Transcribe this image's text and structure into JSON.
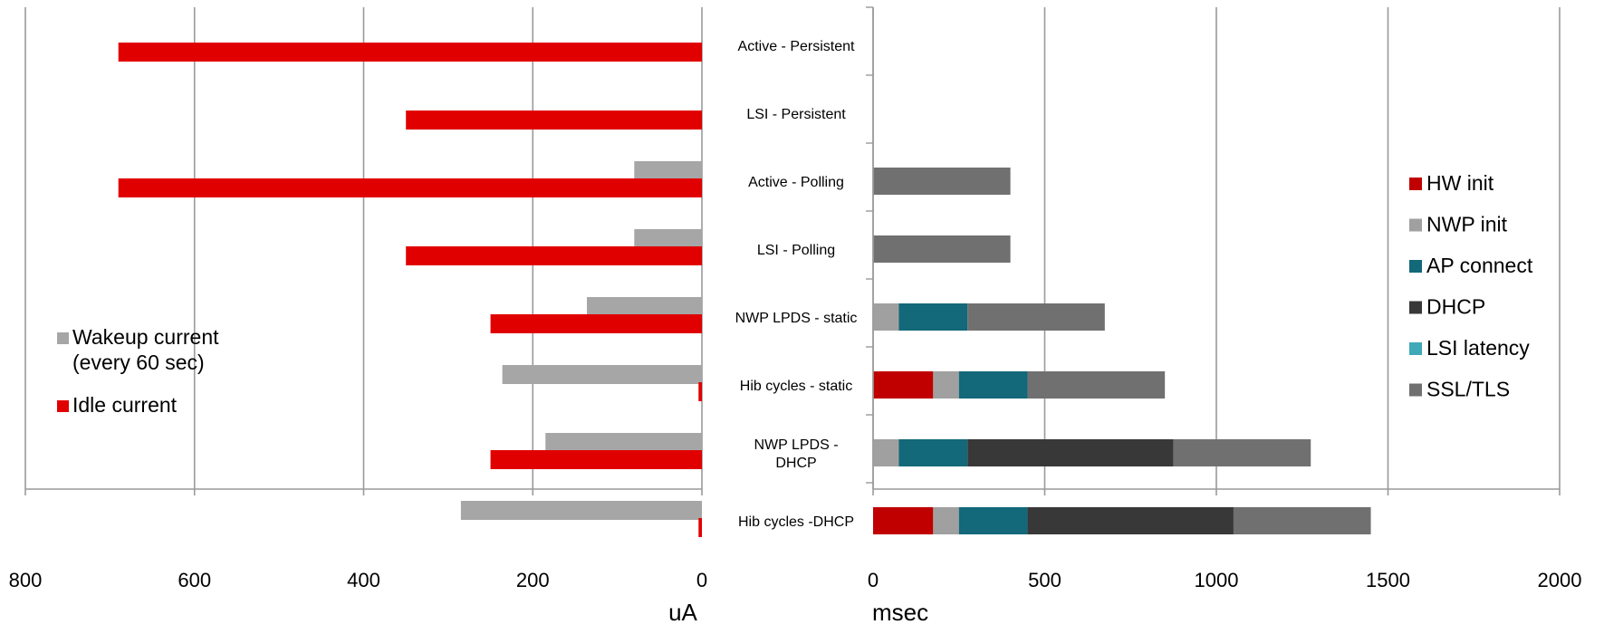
{
  "chart_data": [
    {
      "type": "bar",
      "orientation": "horizontal",
      "x_reversed": true,
      "xlabel": "uA",
      "xlim": [
        0,
        800
      ],
      "xticks": [
        800,
        600,
        400,
        200,
        0
      ],
      "grid": "vertical",
      "legend_position": "left",
      "categories": [
        "Active - Persistent",
        "LSI - Persistent",
        "Active - Polling",
        "LSI - Polling",
        "NWP LPDS - static",
        "Hib cycles - static",
        "NWP LPDS - DHCP",
        "Hib cycles -DHCP"
      ],
      "series": [
        {
          "name": "Wakeup current\n(every 60 sec)",
          "color": "#a6a6a6",
          "values": [
            0,
            0,
            80,
            80,
            136,
            236,
            185,
            285
          ]
        },
        {
          "name": "Idle current",
          "color": "#e10000",
          "values": [
            690,
            350,
            690,
            350,
            250,
            4,
            250,
            4
          ]
        }
      ]
    },
    {
      "type": "bar",
      "orientation": "horizontal",
      "stacked": true,
      "xlabel": "msec",
      "xlim": [
        0,
        2000
      ],
      "xticks": [
        0,
        500,
        1000,
        1500,
        2000
      ],
      "grid": "vertical",
      "legend_position": "right",
      "categories": [
        "Active - Persistent",
        "LSI - Persistent",
        "Active - Polling",
        "LSI - Polling",
        "NWP LPDS - static",
        "Hib cycles - static",
        "NWP LPDS - DHCP",
        "Hib cycles -DHCP"
      ],
      "series": [
        {
          "name": "HW init",
          "color": "#c00000",
          "values": [
            0,
            0,
            0,
            0,
            0,
            175,
            0,
            175
          ]
        },
        {
          "name": "NWP init",
          "color": "#a0a0a0",
          "values": [
            0,
            0,
            0,
            0,
            75,
            75,
            75,
            75
          ]
        },
        {
          "name": "AP connect",
          "color": "#136879",
          "values": [
            0,
            0,
            0,
            0,
            200,
            200,
            200,
            200
          ]
        },
        {
          "name": "DHCP",
          "color": "#383838",
          "values": [
            0,
            0,
            0,
            0,
            0,
            0,
            600,
            600
          ]
        },
        {
          "name": "LSI latency",
          "color": "#3fa9b7",
          "values": [
            0,
            0,
            0,
            0,
            0,
            0,
            0,
            0
          ]
        },
        {
          "name": "SSL/TLS",
          "color": "#707070",
          "values": [
            0,
            0,
            400,
            400,
            400,
            400,
            400,
            400
          ]
        }
      ]
    }
  ]
}
